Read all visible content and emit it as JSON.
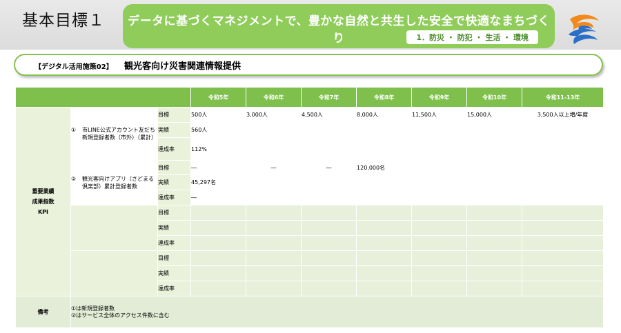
{
  "header": {
    "goal_title": "基本目標１",
    "banner_title": "データに基づくマネジメントで、豊かな自然と共生した安全で快適なまちづくり",
    "banner_sub": "1．防災 ・ 防犯 ・ 生活 ・ 環境"
  },
  "measure": {
    "code": "【デジタル活用施策02】",
    "title": "観光客向け災害関連情報提供"
  },
  "table": {
    "years": [
      "令和5年",
      "令和6年",
      "令和7年",
      "令和8年",
      "令和9年",
      "令和10年",
      "令和11-13年"
    ],
    "category": [
      "重要業績",
      "成果指数",
      "KPI"
    ],
    "row_labels": {
      "target": "目標",
      "actual": "実績",
      "rate": "達成率"
    },
    "indicators": [
      {
        "num": "①",
        "name": "市LINE公式アカウント友だち新規登録者数（市外）（累計）",
        "target": [
          "500人",
          "3,000人",
          "4,500人",
          "8,000人",
          "11,500人",
          "15,000人",
          "3,500人以上増/年度"
        ],
        "actual": [
          "560人",
          "",
          "",
          "",
          "",
          "",
          ""
        ],
        "rate": [
          "112%",
          "",
          "",
          "",
          "",
          "",
          ""
        ]
      },
      {
        "num": "②",
        "name": "観光客向けアプリ（さどまる倶楽部）累計登録者数",
        "target": [
          "―",
          "―",
          "―",
          "120,000名",
          "",
          "",
          ""
        ],
        "actual": [
          "45,297名",
          "",
          "",
          "",
          "",
          "",
          ""
        ],
        "rate": [
          "―",
          "",
          "",
          "",
          "",
          "",
          ""
        ]
      }
    ],
    "notes_label": "備考",
    "notes": [
      "①は新規登録者数",
      "②はサービス全体のアクセス件数に含む"
    ]
  },
  "colors": {
    "accent_green": "#8fcc5a",
    "header_green": "#7fbf4c",
    "light_green": "#eaf2dc"
  },
  "icons": {
    "logo": "sado-city-logo"
  }
}
